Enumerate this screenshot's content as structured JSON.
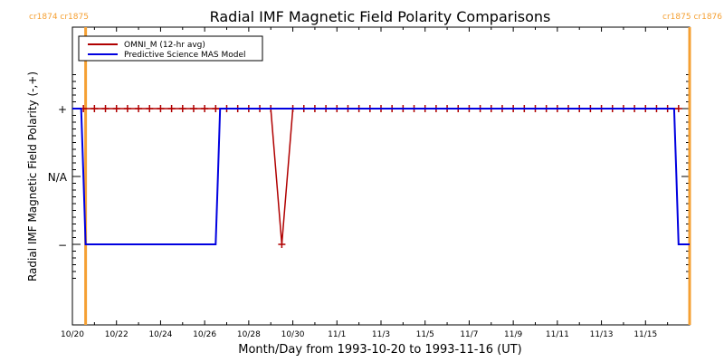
{
  "chart_data": {
    "type": "line",
    "title": "Radial IMF Magnetic Field Polarity Comparisons",
    "xlabel": "Month/Day from 1993-10-20 to 1993-11-16 (UT)",
    "ylabel": "Radial IMF Magnetic Field Polarity (-,+)",
    "xlim_days": [
      0,
      28
    ],
    "ylim": [
      -1.5,
      1.5
    ],
    "x_ticks": [
      {
        "day": 0,
        "label": "10/20"
      },
      {
        "day": 2,
        "label": "10/22"
      },
      {
        "day": 4,
        "label": "10/24"
      },
      {
        "day": 6,
        "label": "10/26"
      },
      {
        "day": 8,
        "label": "10/28"
      },
      {
        "day": 10,
        "label": "10/30"
      },
      {
        "day": 12,
        "label": "11/1"
      },
      {
        "day": 14,
        "label": "11/3"
      },
      {
        "day": 16,
        "label": "11/5"
      },
      {
        "day": 18,
        "label": "11/7"
      },
      {
        "day": 20,
        "label": "11/9"
      },
      {
        "day": 22,
        "label": "11/11"
      },
      {
        "day": 24,
        "label": "11/13"
      },
      {
        "day": 26,
        "label": "11/15"
      }
    ],
    "y_ticks": [
      {
        "value": 1,
        "label": "+"
      },
      {
        "value": 0,
        "label": "N/A"
      },
      {
        "value": -1,
        "label": "−"
      }
    ],
    "carrington_markers": [
      {
        "day": 0.6,
        "label": "cr1874 cr1875"
      },
      {
        "day": 28,
        "label": "cr1875 cr1876"
      }
    ],
    "legend": {
      "position": "top-left",
      "entries": [
        {
          "name": "OMNI_M (12-hr avg)",
          "color": "#b00000"
        },
        {
          "name": "Predictive Science MAS Model",
          "color": "#0000e0"
        }
      ]
    },
    "series": [
      {
        "name": "OMNI_M (12-hr avg)",
        "color": "#b00000",
        "marker": "+",
        "x": [
          0.5,
          1,
          1.5,
          2,
          2.5,
          3,
          3.5,
          4,
          4.5,
          5,
          5.5,
          6,
          6.5,
          7,
          7.5,
          8,
          8.5,
          9,
          9.5,
          10,
          10.5,
          11,
          11.5,
          12,
          12.5,
          13,
          13.5,
          14,
          14.5,
          15,
          15.5,
          16,
          16.5,
          17,
          17.5,
          18,
          18.5,
          19,
          19.5,
          20,
          20.5,
          21,
          21.5,
          22,
          22.5,
          23,
          23.5,
          24,
          24.5,
          25,
          25.5,
          26,
          26.5,
          27,
          27.5
        ],
        "y": [
          1,
          1,
          1,
          1,
          1,
          1,
          1,
          1,
          1,
          1,
          1,
          1,
          1,
          1,
          1,
          1,
          1,
          1,
          -1,
          1,
          1,
          1,
          1,
          1,
          1,
          1,
          1,
          1,
          1,
          1,
          1,
          1,
          1,
          1,
          1,
          1,
          1,
          1,
          1,
          1,
          1,
          1,
          1,
          1,
          1,
          1,
          1,
          1,
          1,
          1,
          1,
          1,
          1,
          1,
          1
        ]
      },
      {
        "name": "Predictive Science MAS Model",
        "color": "#0000e0",
        "x": [
          0,
          0.4,
          0.5,
          0.6,
          6.5,
          6.6,
          6.7,
          27.3,
          27.4,
          27.5,
          28
        ],
        "y": [
          1,
          1,
          0,
          -1,
          -1,
          0,
          1,
          1,
          0,
          -1,
          -1
        ]
      }
    ]
  }
}
